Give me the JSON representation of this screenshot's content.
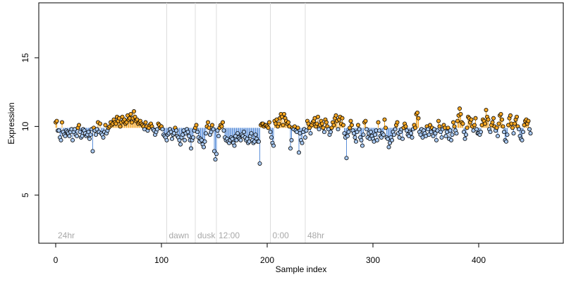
{
  "chart_data": {
    "type": "scatter",
    "title": "",
    "xlabel": "Sample index",
    "ylabel": "Expression",
    "xlim": [
      -16,
      480
    ],
    "ylim": [
      1.5,
      19.0
    ],
    "x_ticks": [
      0,
      100,
      200,
      300,
      400
    ],
    "y_ticks": [
      5,
      10,
      15
    ],
    "grid": false,
    "baseline_reference": 9.9,
    "colors": {
      "above_point": "#f5a623",
      "below_point": "#a8c8f0",
      "above_line": "#f5a623",
      "below_line": "#5b8fd9",
      "phase_line": "#dcdcdc",
      "phase_text": "#a8a8a8",
      "point_edge": "#000000"
    },
    "phases": [
      {
        "x": 0,
        "label": "24hr",
        "line": false
      },
      {
        "x": 105,
        "label": "dawn",
        "line": true
      },
      {
        "x": 132,
        "label": "dusk",
        "line": true
      },
      {
        "x": 152,
        "label": "12:00",
        "line": true
      },
      {
        "x": 203,
        "label": "0:00",
        "line": true
      },
      {
        "x": 236,
        "label": "48hr",
        "line": true
      }
    ],
    "series": [
      {
        "values": [
          10.3,
          10.4,
          9.7,
          9.7,
          9.2,
          9.0,
          10.3,
          9.6,
          9.4,
          9.3,
          9.7,
          9.6,
          9.5,
          9.3,
          9.6,
          9.8,
          9.0,
          9.6,
          9.8,
          9.4,
          9.3,
          9.9,
          10.1,
          9.6,
          9.2,
          9.3,
          9.8,
          9.7,
          9.5,
          9.3,
          9.4,
          9.6,
          9.1,
          9.4,
          9.8,
          8.2,
          9.9,
          9.7,
          9.4,
          9.8,
          10.3,
          9.6,
          10.2,
          9.5,
          9.4,
          9.2,
          9.6,
          10.1,
          9.5,
          9.7,
          9.9,
          10.0,
          10.3,
          10.1,
          10.2,
          10.5,
          10.3,
          10.2,
          10.7,
          10.4,
          10.6,
          10.0,
          10.3,
          10.7,
          10.4,
          10.5,
          10.2,
          10.3,
          10.8,
          10.5,
          10.6,
          10.9,
          10.3,
          10.6,
          11.1,
          10.7,
          10.4,
          10.5,
          10.2,
          10.3,
          10.4,
          10.2,
          10.1,
          10.0,
          9.8,
          10.3,
          10.0,
          9.7,
          9.9,
          10.1,
          10.2,
          10.0,
          9.8,
          9.7,
          9.4,
          9.6,
          9.8,
          10.2,
          10.1,
          9.9,
          10.0,
          9.8,
          9.4,
          9.3,
          9.2,
          9.0,
          9.4,
          9.5,
          9.8,
          9.6,
          9.1,
          9.4,
          9.5,
          9.9,
          9.7,
          9.3,
          9.2,
          9.0,
          8.7,
          9.2,
          9.4,
          9.7,
          9.0,
          9.5,
          9.8,
          9.6,
          9.3,
          9.0,
          8.4,
          9.0,
          9.2,
          9.7,
          9.9,
          10.1,
          9.6,
          9.2,
          8.9,
          9.1,
          9.0,
          8.7,
          8.5,
          8.9,
          9.5,
          10.0,
          10.3,
          9.9,
          9.4,
          9.6,
          10.1,
          9.8,
          8.2,
          7.6,
          8.0,
          9.7,
          9.3,
          9.9,
          10.1,
          10.0,
          10.3,
          9.7,
          9.2,
          9.0,
          9.1,
          8.9,
          8.8,
          9.0,
          9.2,
          9.1,
          8.8,
          8.6,
          9.3,
          9.0,
          9.5,
          9.2,
          9.1,
          9.0,
          9.4,
          9.3,
          9.6,
          9.2,
          9.0,
          9.1,
          8.8,
          8.9,
          9.3,
          9.5,
          9.0,
          8.8,
          8.9,
          9.4,
          9.1,
          8.9,
          8.9,
          7.3,
          10.1,
          10.2,
          10.2,
          10.0,
          10.1,
          10.1,
          10.0,
          9.9,
          10.3,
          9.6,
          9.2,
          8.8,
          8.6,
          10.4,
          10.2,
          10.5,
          10.0,
          10.2,
          10.6,
          10.9,
          10.7,
          10.1,
          10.9,
          10.6,
          10.4,
          10.2,
          10.3,
          10.0,
          8.4,
          9.0,
          9.9,
          9.8,
          10.0,
          9.7,
          9.6,
          9.9,
          8.1,
          9.5,
          9.0,
          8.8,
          9.6,
          9.8,
          9.2,
          9.7,
          10.4,
          10.2,
          9.9,
          9.5,
          10.1,
          10.3,
          10.4,
          10.6,
          10.0,
          10.2,
          10.7,
          9.8,
          10.1,
          10.4,
          10.2,
          9.9,
          9.6,
          10.5,
          10.3,
          10.0,
          9.8,
          9.4,
          9.6,
          9.9,
          10.3,
          10.1,
          10.6,
          10.8,
          10.4,
          9.8,
          10.5,
          10.7,
          10.2,
          10.6,
          10.1,
          9.5,
          9.2,
          7.7,
          9.3,
          9.6,
          9.9,
          10.4,
          10.1,
          9.7,
          9.5,
          9.2,
          8.9,
          9.6,
          10.1,
          9.8,
          9.2,
          9.0,
          8.6,
          9.4,
          10.3,
          10.4,
          9.8,
          9.2,
          9.5,
          9.1,
          9.6,
          9.3,
          9.1,
          8.9,
          9.4,
          9.7,
          9.0,
          10.3,
          9.7,
          9.3,
          9.2,
          9.5,
          9.4,
          10.5,
          9.9,
          9.2,
          9.1,
          8.5,
          8.8,
          9.2,
          9.0,
          9.6,
          9.4,
          9.8,
          10.1,
          10.3,
          9.5,
          9.2,
          9.6,
          9.8,
          9.1,
          9.9,
          10.2,
          10.0,
          9.7,
          9.4,
          9.3,
          9.6,
          9.5,
          9.2,
          9.8,
          10.1,
          9.9,
          10.9,
          11.0,
          10.6,
          9.6,
          9.4,
          9.8,
          9.2,
          9.7,
          9.5,
          9.3,
          10.0,
          9.8,
          9.4,
          10.1,
          9.6,
          9.9,
          9.3,
          9.8,
          9.5,
          9.0,
          9.7,
          10.4,
          10.0,
          9.6,
          9.2,
          9.8,
          10.1,
          9.9,
          9.3,
          9.6,
          9.9,
          9.1,
          9.7,
          9.0,
          9.4,
          10.3,
          10.0,
          9.7,
          9.5,
          10.4,
          10.8,
          11.3,
          10.9,
          10.3,
          10.2,
          9.6,
          9.1,
          9.4,
          9.9,
          10.7,
          10.6,
          10.3,
          10.5,
          10.0,
          9.7,
          10.1,
          10.6,
          9.8,
          9.5,
          9.5,
          9.4,
          9.6,
          10.1,
          10.5,
          10.4,
          10.2,
          11.2,
          10.7,
          10.5,
          9.8,
          9.6,
          10.1,
          10.3,
          10.6,
          10.0,
          9.7,
          9.9,
          9.3,
          10.2,
          10.8,
          10.9,
          10.5,
          10.0,
          9.6,
          9.0,
          8.9,
          9.4,
          10.1,
          10.6,
          10.8,
          10.2,
          9.9,
          9.5,
          10.2,
          10.5,
          10.7,
          10.0,
          9.8,
          9.3,
          9.1,
          9.0,
          9.6,
          10.1,
          10.4,
          10.5,
          10.2,
          10.4,
          9.8,
          9.5
        ]
      }
    ]
  }
}
